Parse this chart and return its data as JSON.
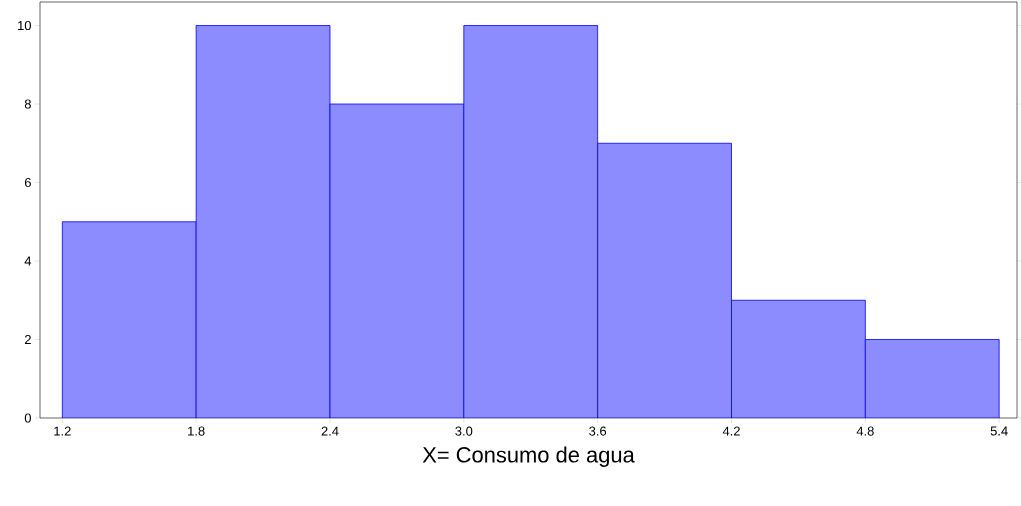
{
  "chart_data": {
    "type": "histogram",
    "xlabel": "X= Consumo de agua",
    "bins": [
      1.2,
      1.8,
      2.4,
      3.0,
      3.6,
      4.2,
      4.8,
      5.4
    ],
    "values": [
      5,
      10,
      8,
      10,
      7,
      3,
      2
    ],
    "color": "#0000ff",
    "xlim": [
      1.1,
      5.48
    ],
    "ylim": [
      0,
      10.6
    ],
    "xticks": [
      1.2,
      1.8,
      2.4,
      {
        "value": 3.0,
        "label": "3.0"
      },
      3.6,
      4.2,
      4.8,
      5.4
    ],
    "yticks": [
      0,
      2,
      4,
      6,
      8,
      10
    ],
    "grid": false
  }
}
